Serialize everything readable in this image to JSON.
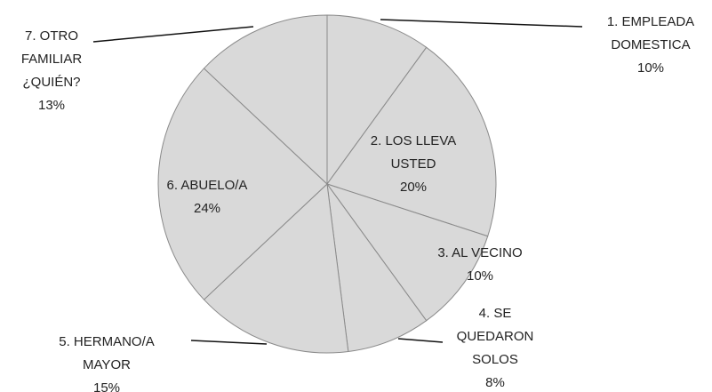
{
  "chart_data": {
    "type": "pie",
    "categories": [
      "1. EMPLEADA DOMESTICA",
      "2. LOS LLEVA USTED",
      "3. AL VECINO",
      "4. SE QUEDARON SOLOS",
      "5. HERMANO/A MAYOR",
      "6. ABUELO/A",
      "7. OTRO FAMILIAR ¿QUIÉN?"
    ],
    "values": [
      10,
      20,
      10,
      8,
      15,
      24,
      13
    ],
    "value_labels": [
      "10%",
      "20%",
      "10%",
      "8%",
      "15%",
      "24%",
      "13%"
    ],
    "color": "#d9d9d9"
  }
}
